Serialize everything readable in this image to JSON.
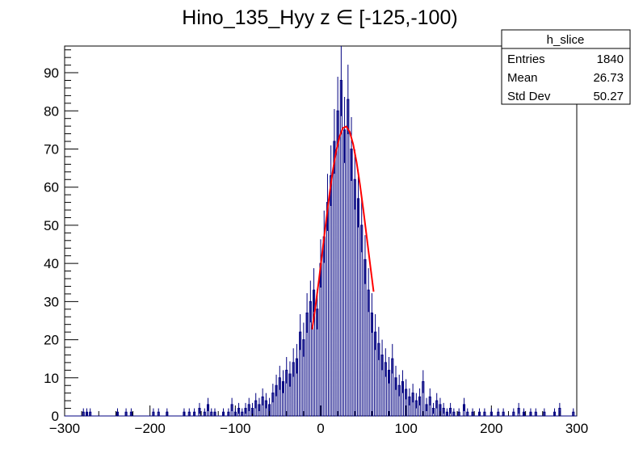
{
  "chart_data": {
    "type": "histogram",
    "title": "Hino_135_Hyy z  ∈ [-125,-100)",
    "xlabel": "",
    "ylabel": "",
    "xlim": [
      -300,
      300
    ],
    "ylim": [
      0,
      97
    ],
    "x_ticks": [
      "−300",
      "−200",
      "−100",
      "0",
      "100",
      "200",
      "300"
    ],
    "x_tick_values": [
      -300,
      -200,
      -100,
      0,
      100,
      200,
      300
    ],
    "y_ticks": [
      "0",
      "10",
      "20",
      "30",
      "40",
      "50",
      "60",
      "70",
      "80",
      "90"
    ],
    "y_tick_values": [
      0,
      10,
      20,
      30,
      40,
      50,
      60,
      70,
      80,
      90
    ],
    "histogram_color": "#000080",
    "fit_color": "#ff0000",
    "bin_width": 2,
    "bins": [
      {
        "x": -278,
        "y": 1
      },
      {
        "x": -274,
        "y": 1
      },
      {
        "x": -270,
        "y": 1
      },
      {
        "x": -238,
        "y": 1
      },
      {
        "x": -228,
        "y": 1
      },
      {
        "x": -222,
        "y": 1
      },
      {
        "x": -196,
        "y": 1
      },
      {
        "x": -190,
        "y": 1
      },
      {
        "x": -180,
        "y": 1
      },
      {
        "x": -160,
        "y": 1
      },
      {
        "x": -154,
        "y": 1
      },
      {
        "x": -148,
        "y": 1
      },
      {
        "x": -142,
        "y": 2
      },
      {
        "x": -136,
        "y": 1
      },
      {
        "x": -132,
        "y": 3
      },
      {
        "x": -128,
        "y": 1
      },
      {
        "x": -124,
        "y": 1
      },
      {
        "x": -114,
        "y": 1
      },
      {
        "x": -108,
        "y": 1
      },
      {
        "x": -104,
        "y": 3
      },
      {
        "x": -100,
        "y": 1
      },
      {
        "x": -96,
        "y": 2
      },
      {
        "x": -92,
        "y": 1
      },
      {
        "x": -88,
        "y": 2
      },
      {
        "x": -84,
        "y": 3
      },
      {
        "x": -80,
        "y": 2
      },
      {
        "x": -76,
        "y": 4
      },
      {
        "x": -72,
        "y": 3
      },
      {
        "x": -68,
        "y": 5
      },
      {
        "x": -64,
        "y": 4
      },
      {
        "x": -60,
        "y": 3
      },
      {
        "x": -56,
        "y": 6
      },
      {
        "x": -52,
        "y": 8
      },
      {
        "x": -48,
        "y": 10
      },
      {
        "x": -44,
        "y": 9
      },
      {
        "x": -40,
        "y": 12
      },
      {
        "x": -36,
        "y": 11
      },
      {
        "x": -32,
        "y": 14
      },
      {
        "x": -28,
        "y": 15
      },
      {
        "x": -24,
        "y": 22
      },
      {
        "x": -20,
        "y": 20
      },
      {
        "x": -16,
        "y": 27
      },
      {
        "x": -12,
        "y": 30
      },
      {
        "x": -8,
        "y": 33
      },
      {
        "x": -4,
        "y": 28
      },
      {
        "x": 0,
        "y": 40
      },
      {
        "x": 4,
        "y": 47
      },
      {
        "x": 8,
        "y": 56
      },
      {
        "x": 12,
        "y": 63
      },
      {
        "x": 16,
        "y": 72
      },
      {
        "x": 20,
        "y": 80
      },
      {
        "x": 24,
        "y": 88
      },
      {
        "x": 28,
        "y": 75
      },
      {
        "x": 32,
        "y": 83
      },
      {
        "x": 36,
        "y": 70
      },
      {
        "x": 40,
        "y": 62
      },
      {
        "x": 44,
        "y": 57
      },
      {
        "x": 48,
        "y": 50
      },
      {
        "x": 52,
        "y": 41
      },
      {
        "x": 56,
        "y": 33
      },
      {
        "x": 60,
        "y": 27
      },
      {
        "x": 64,
        "y": 22
      },
      {
        "x": 68,
        "y": 19
      },
      {
        "x": 72,
        "y": 16
      },
      {
        "x": 76,
        "y": 14
      },
      {
        "x": 80,
        "y": 12
      },
      {
        "x": 84,
        "y": 15
      },
      {
        "x": 88,
        "y": 10
      },
      {
        "x": 92,
        "y": 8
      },
      {
        "x": 96,
        "y": 9
      },
      {
        "x": 100,
        "y": 7
      },
      {
        "x": 104,
        "y": 5
      },
      {
        "x": 108,
        "y": 6
      },
      {
        "x": 112,
        "y": 4
      },
      {
        "x": 116,
        "y": 5
      },
      {
        "x": 120,
        "y": 9
      },
      {
        "x": 124,
        "y": 3
      },
      {
        "x": 128,
        "y": 5
      },
      {
        "x": 132,
        "y": 2
      },
      {
        "x": 136,
        "y": 4
      },
      {
        "x": 140,
        "y": 3
      },
      {
        "x": 144,
        "y": 2
      },
      {
        "x": 148,
        "y": 1
      },
      {
        "x": 152,
        "y": 2
      },
      {
        "x": 156,
        "y": 1
      },
      {
        "x": 162,
        "y": 1
      },
      {
        "x": 168,
        "y": 3
      },
      {
        "x": 172,
        "y": 1
      },
      {
        "x": 178,
        "y": 1
      },
      {
        "x": 186,
        "y": 1
      },
      {
        "x": 192,
        "y": 1
      },
      {
        "x": 200,
        "y": 1
      },
      {
        "x": 208,
        "y": 1
      },
      {
        "x": 214,
        "y": 1
      },
      {
        "x": 226,
        "y": 1
      },
      {
        "x": 232,
        "y": 2
      },
      {
        "x": 238,
        "y": 1
      },
      {
        "x": 246,
        "y": 1
      },
      {
        "x": 252,
        "y": 1
      },
      {
        "x": 262,
        "y": 1
      },
      {
        "x": 274,
        "y": 1
      },
      {
        "x": 280,
        "y": 2
      },
      {
        "x": 296,
        "y": 1
      }
    ],
    "fit": {
      "type": "gaussian",
      "x": [
        -10,
        -6,
        -2,
        2,
        6,
        10,
        14,
        18,
        22,
        26,
        30,
        34,
        38,
        42,
        46,
        50,
        54,
        58,
        62
      ],
      "y": [
        22.7,
        28.9,
        35.8,
        43.1,
        50.5,
        57.6,
        64.0,
        69.3,
        73.2,
        75.5,
        75.9,
        74.5,
        71.3,
        66.6,
        60.7,
        54.0,
        46.8,
        39.6,
        32.6
      ]
    }
  },
  "stats_box": {
    "name": "h_slice",
    "rows": [
      {
        "label": "Entries",
        "value": "1840"
      },
      {
        "label": "Mean",
        "value": "26.73"
      },
      {
        "label": "Std Dev",
        "value": "50.27"
      }
    ]
  }
}
